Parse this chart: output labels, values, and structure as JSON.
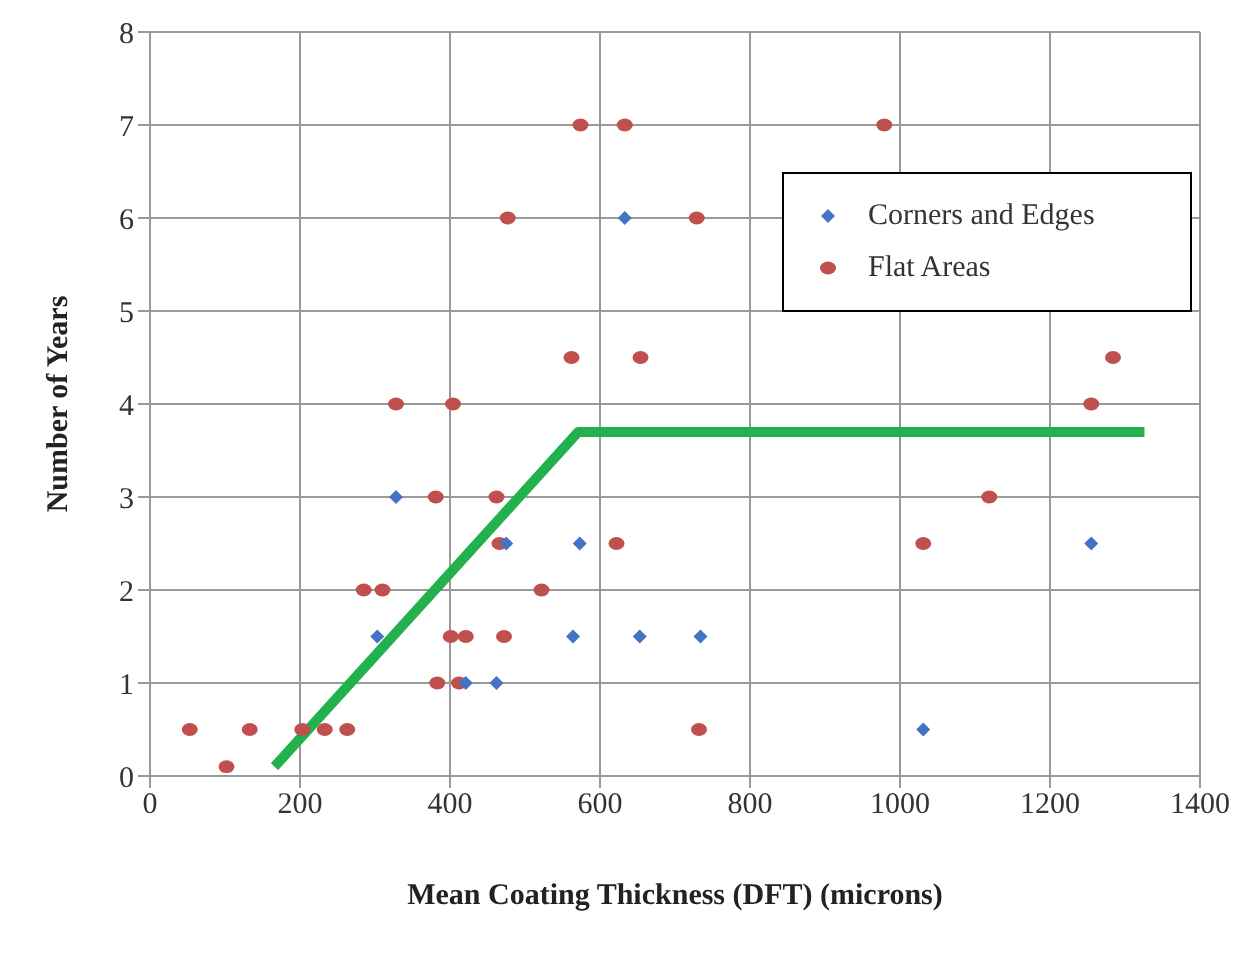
{
  "chart_data": {
    "type": "scatter",
    "xlabel": "Mean Coating Thickness (DFT) (microns)",
    "ylabel": "Number of Years",
    "xlim": [
      0,
      1400
    ],
    "xticks": [
      0,
      200,
      400,
      600,
      800,
      1000,
      1200,
      1400
    ],
    "ylim": [
      0,
      8
    ],
    "yticks": [
      0,
      1,
      2,
      3,
      4,
      5,
      6,
      7,
      8
    ],
    "grid": true,
    "legend": "top right",
    "series": [
      {
        "name": "Corners and Edges",
        "color": "#4472c4",
        "marker": "diamond",
        "x": [
          328,
          633,
          475,
          573,
          303,
          564,
          653,
          734,
          421,
          462,
          1255,
          1031
        ],
        "values": [
          3,
          6,
          2.5,
          2.5,
          1.5,
          1.5,
          1.5,
          1.5,
          1,
          1,
          2.5,
          0.5
        ]
      },
      {
        "name": "Flat Areas",
        "color": "#c0504d",
        "marker": "circle",
        "x": [
          53,
          102,
          133,
          203,
          233,
          263,
          285,
          310,
          383,
          412,
          401,
          421,
          472,
          466,
          622,
          522,
          732,
          1031,
          574,
          633,
          477,
          729,
          562,
          654,
          328,
          404,
          381,
          462,
          979,
          1284,
          1255,
          1119
        ],
        "values": [
          0.5,
          0.1,
          0.5,
          0.5,
          0.5,
          0.5,
          2,
          2,
          1,
          1,
          1.5,
          1.5,
          1.5,
          2.5,
          2.5,
          2,
          0.5,
          2.5,
          7,
          7,
          6,
          6,
          4.5,
          4.5,
          4,
          4,
          3,
          3,
          7,
          4.5,
          4,
          3
        ]
      },
      {
        "type": "line",
        "color": "#22b14c",
        "marker": "none",
        "x": [
          166,
          571,
          1326
        ],
        "values": [
          0.1,
          3.7,
          3.7
        ]
      }
    ]
  }
}
